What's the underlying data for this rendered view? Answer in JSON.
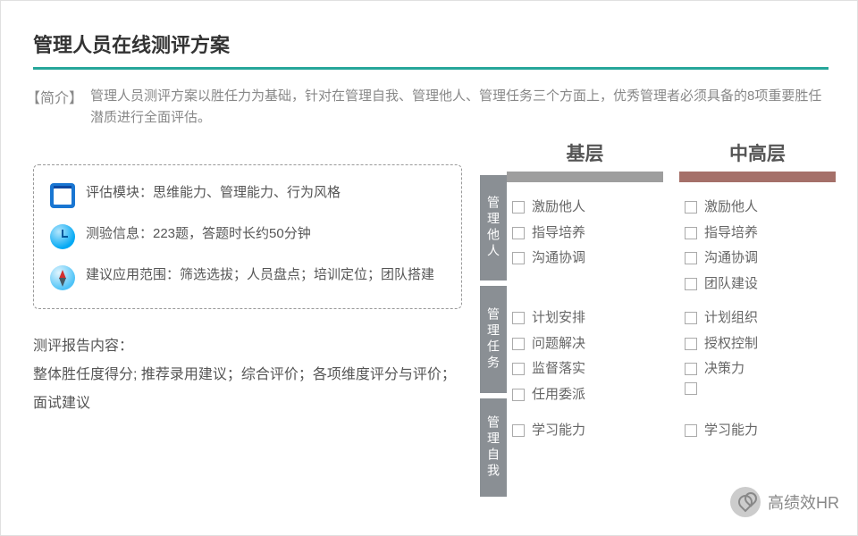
{
  "title": "管理人员在线测评方案",
  "intro_label": "【简介】",
  "intro_text": "管理人员测评方案以胜任力为基础，针对在管理自我、管理他人、管理任务三个方面上，优秀管理者必须具备的8项重要胜任潜质进行全面评估。",
  "info": {
    "module": "评估模块：思维能力、管理能力、行为风格",
    "test": "测验信息：223题，答题时长约50分钟",
    "scope": "建议应用范围：筛选选拔；人员盘点；培训定位；团队搭建"
  },
  "report": {
    "label": "测评报告内容：",
    "body": "整体胜任度得分; 推荐录用建议；综合评价；各项维度评分与评价；面试建议"
  },
  "columns": {
    "basic": "基层",
    "mid": "中高层"
  },
  "row_labels": {
    "others": "管理他人",
    "tasks": "管理任务",
    "self": "管理自我"
  },
  "grid": {
    "basic": {
      "others": [
        "激励他人",
        "指导培养",
        "沟通协调"
      ],
      "tasks": [
        "计划安排",
        "问题解决",
        "监督落实",
        "任用委派"
      ],
      "self": [
        "学习能力"
      ]
    },
    "mid": {
      "others": [
        "激励他人",
        "指导培养",
        "沟通协调",
        "团队建设"
      ],
      "tasks": [
        "计划组织",
        "授权控制",
        "决策力",
        ""
      ],
      "self": [
        "学习能力"
      ]
    }
  },
  "heights": {
    "others": 118,
    "tasks": 120,
    "self": 110
  },
  "colors": {
    "accent": "#26a69a",
    "bar_basic": "#9e9e9e",
    "bar_mid": "#a57069",
    "row_label_bg": "#8a8f94"
  },
  "watermark": "高绩效HR"
}
